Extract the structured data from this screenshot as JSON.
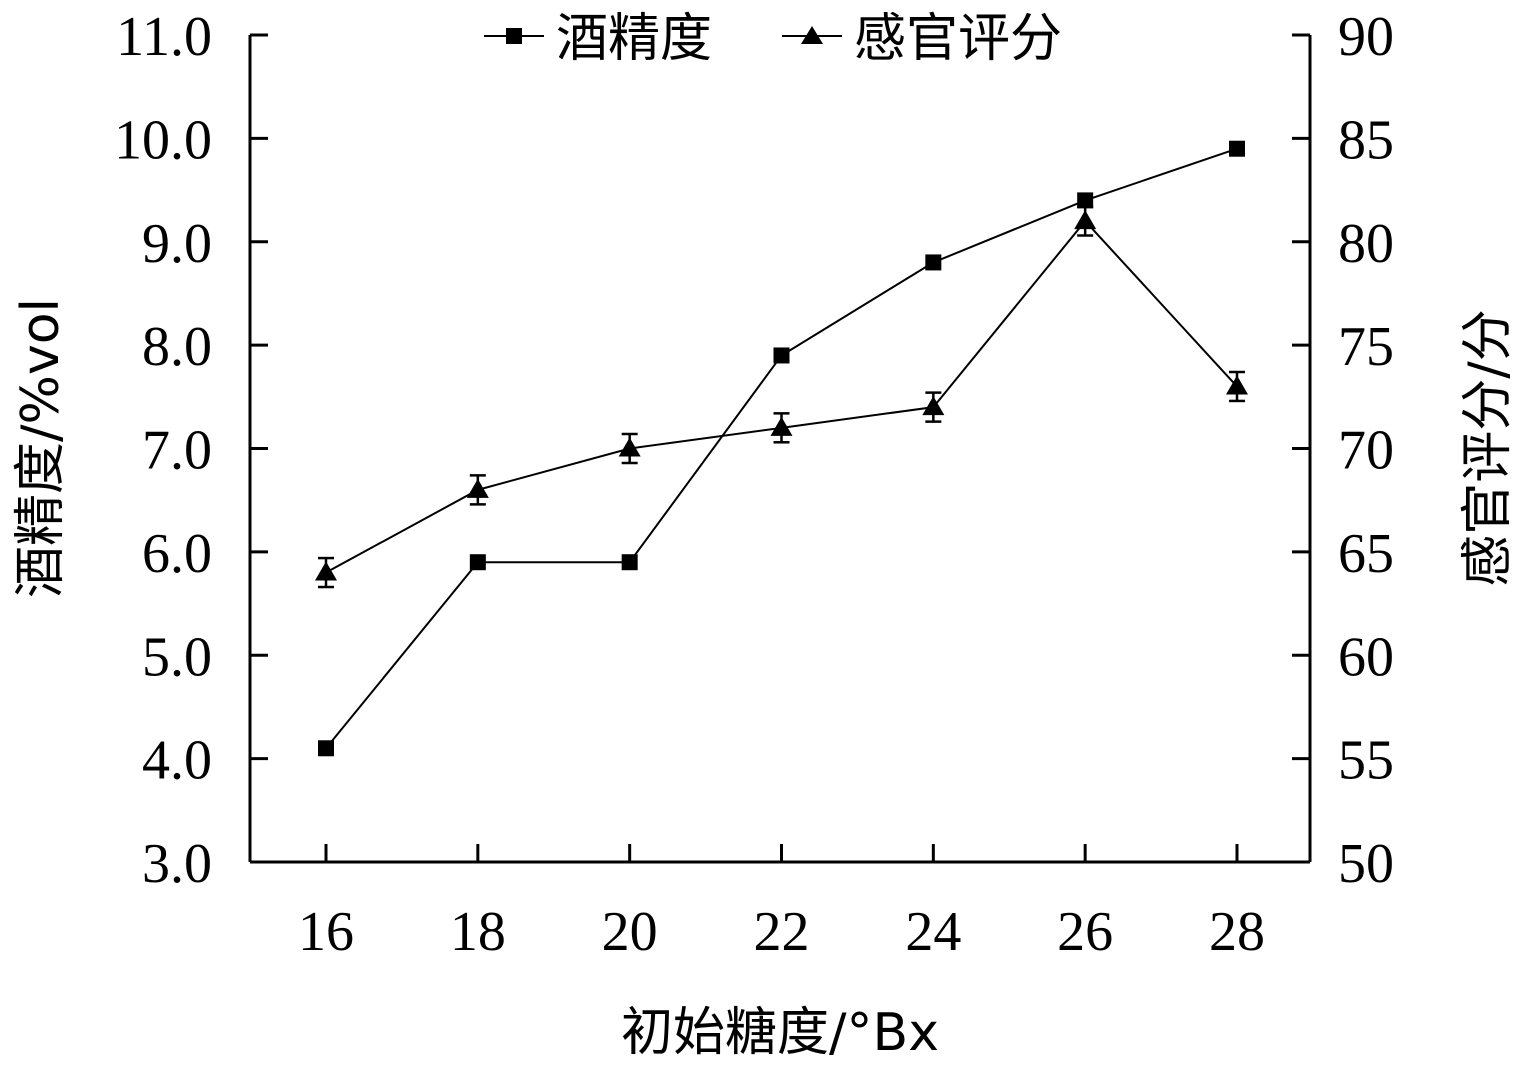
{
  "chart_data": {
    "type": "line",
    "x": [
      16,
      18,
      20,
      22,
      24,
      26,
      28
    ],
    "xlabel": "初始糖度/°Bx",
    "ylabel_left": "酒精度/%vol",
    "ylabel_right": "感官评分/分",
    "ylim_left": [
      3.0,
      11.0
    ],
    "ylim_right": [
      50,
      90
    ],
    "yticks_left": [
      "3.0",
      "4.0",
      "5.0",
      "6.0",
      "7.0",
      "8.0",
      "9.0",
      "10.0",
      "11.0"
    ],
    "yticks_right": [
      "50",
      "55",
      "60",
      "65",
      "70",
      "75",
      "80",
      "85",
      "90"
    ],
    "xticks": [
      "16",
      "18",
      "20",
      "22",
      "24",
      "26",
      "28"
    ],
    "legend_position": "top-center",
    "grid": false,
    "series": [
      {
        "name": "酒精度",
        "axis": "left",
        "marker": "square",
        "values": [
          4.1,
          5.9,
          5.9,
          7.9,
          8.8,
          9.4,
          9.9
        ]
      },
      {
        "name": "感官评分",
        "axis": "right",
        "marker": "triangle",
        "values": [
          64.0,
          68.0,
          70.0,
          71.0,
          72.0,
          81.0,
          73.0
        ],
        "error": [
          0.7,
          0.7,
          0.7,
          0.7,
          0.7,
          0.7,
          0.7
        ]
      }
    ]
  }
}
